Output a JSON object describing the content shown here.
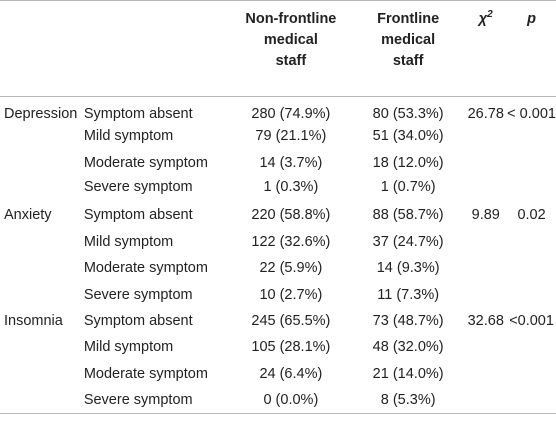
{
  "header": {
    "col_nonfrontline": [
      "Non-frontline",
      "medical",
      "staff"
    ],
    "col_frontline": [
      "Frontline",
      "medical",
      "staff"
    ],
    "col_chi": "χ",
    "col_chi_sup": "2",
    "col_p": "p"
  },
  "groups": [
    {
      "category": "Depression",
      "chi2": "26.78",
      "p": "< 0.001",
      "rows": [
        {
          "level": "Symptom absent",
          "nonfrontline": "280 (74.9%)",
          "frontline": "80 (53.3%)"
        },
        {
          "level": "Mild symptom",
          "nonfrontline": "79 (21.1%)",
          "frontline": "51 (34.0%)"
        },
        {
          "level": "Moderate symptom",
          "nonfrontline": "14 (3.7%)",
          "frontline": "18 (12.0%)"
        },
        {
          "level": "Severe symptom",
          "nonfrontline": "1 (0.3%)",
          "frontline": "1 (0.7%)"
        }
      ]
    },
    {
      "category": "Anxiety",
      "chi2": "9.89",
      "p": "0.02",
      "rows": [
        {
          "level": "Symptom absent",
          "nonfrontline": "220 (58.8%)",
          "frontline": "88 (58.7%)"
        },
        {
          "level": "Mild symptom",
          "nonfrontline": "122 (32.6%)",
          "frontline": "37 (24.7%)"
        },
        {
          "level": "Moderate symptom",
          "nonfrontline": "22 (5.9%)",
          "frontline": "14 (9.3%)"
        },
        {
          "level": "Severe symptom",
          "nonfrontline": "10 (2.7%)",
          "frontline": "11 (7.3%)"
        }
      ]
    },
    {
      "category": "Insomnia",
      "chi2": "32.68",
      "p": "<0.001",
      "rows": [
        {
          "level": "Symptom absent",
          "nonfrontline": "245 (65.5%)",
          "frontline": "73 (48.7%)"
        },
        {
          "level": "Mild symptom",
          "nonfrontline": "105 (28.1%)",
          "frontline": "48 (32.0%)"
        },
        {
          "level": "Moderate symptom",
          "nonfrontline": "24 (6.4%)",
          "frontline": "21 (14.0%)"
        },
        {
          "level": "Severe symptom",
          "nonfrontline": "0 (0.0%)",
          "frontline": "8 (5.3%)"
        }
      ]
    }
  ]
}
